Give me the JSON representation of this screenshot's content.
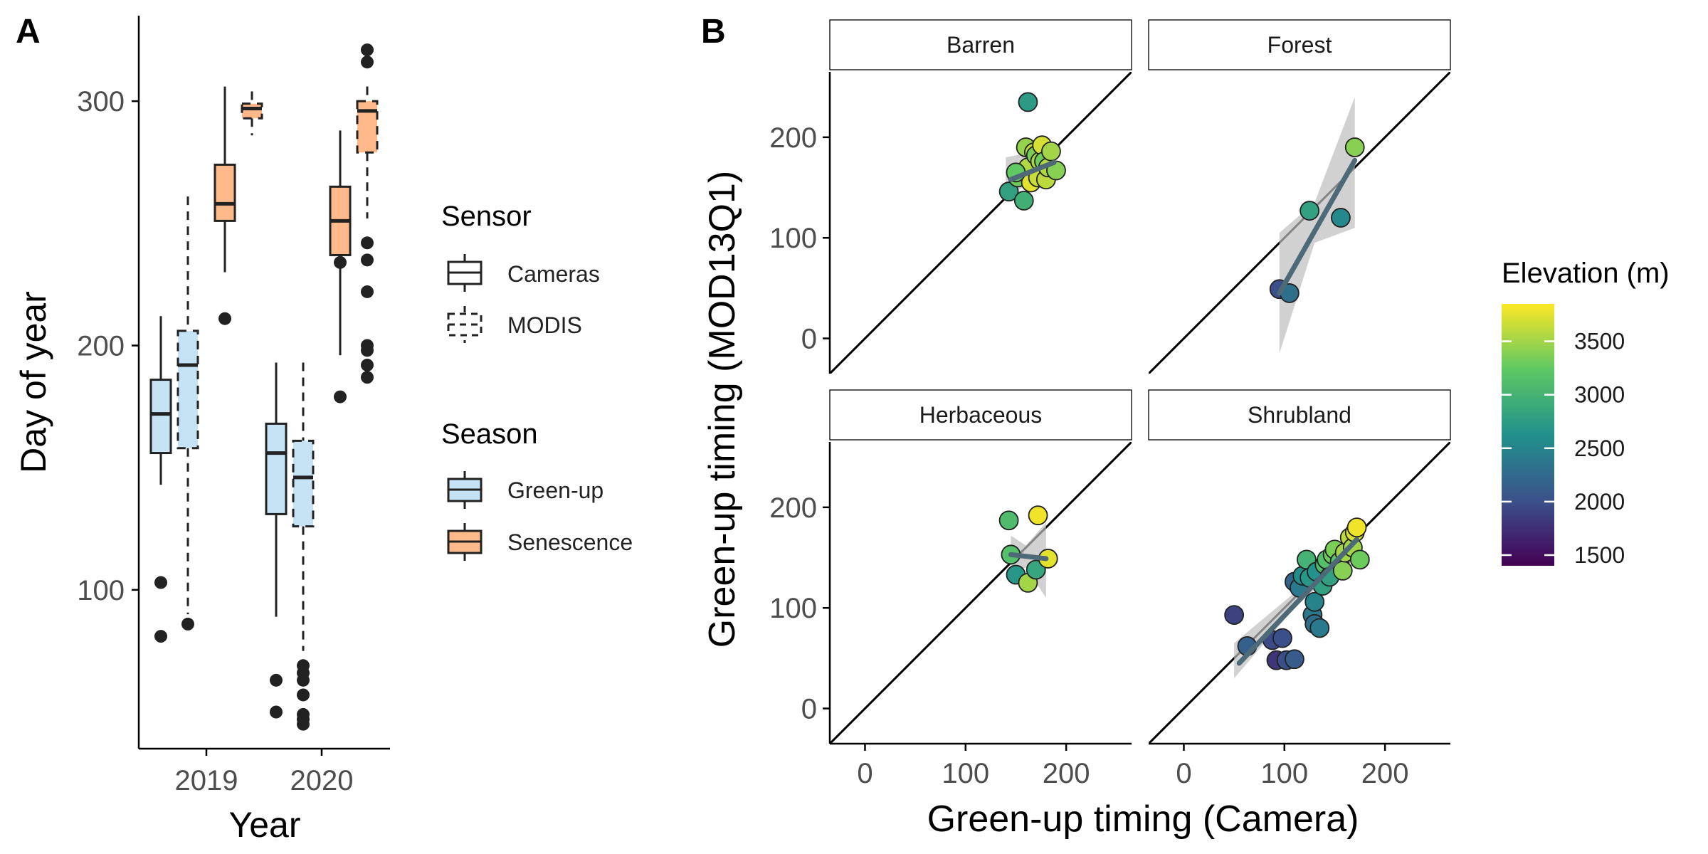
{
  "panel_labels": {
    "a": "A",
    "b": "B"
  },
  "colors": {
    "greenup_fill": "#C6E2F5",
    "senescence_fill": "#FFB98A",
    "box_stroke": "#222222",
    "outlier": "#222222",
    "fit_line": "#4E6A78",
    "ribbon": "#BDBDBD",
    "viridis": [
      "#440154",
      "#3B528B",
      "#21908C",
      "#5DC863",
      "#FDE725"
    ]
  },
  "chart_data": [
    {
      "type": "box",
      "panel": "A",
      "xlabel": "Year",
      "ylabel": "Day of year",
      "categories": [
        "2019",
        "2020"
      ],
      "yticks": [
        100,
        200,
        300
      ],
      "ylim": [
        35,
        335
      ],
      "groups": [
        {
          "year": "2019",
          "season": "Green-up",
          "sensor": "Cameras",
          "min": 143,
          "q1": 156,
          "median": 172,
          "q3": 186,
          "max": 212,
          "outliers": [
            81,
            103
          ]
        },
        {
          "year": "2019",
          "season": "Green-up",
          "sensor": "MODIS",
          "min": 90,
          "q1": 158,
          "median": 192,
          "q3": 206,
          "max": 261,
          "outliers": [
            86
          ]
        },
        {
          "year": "2019",
          "season": "Senescence",
          "sensor": "Cameras",
          "min": 230,
          "q1": 251,
          "median": 258,
          "q3": 274,
          "max": 306,
          "outliers": [
            211
          ]
        },
        {
          "year": "2019",
          "season": "Senescence",
          "sensor": "MODIS",
          "min": 286,
          "q1": 293,
          "median": 297,
          "q3": 299,
          "max": 304,
          "outliers": []
        },
        {
          "year": "2020",
          "season": "Green-up",
          "sensor": "Cameras",
          "min": 89,
          "q1": 131,
          "median": 156,
          "q3": 168,
          "max": 193,
          "outliers": [
            50,
            63
          ]
        },
        {
          "year": "2020",
          "season": "Green-up",
          "sensor": "MODIS",
          "min": 75,
          "q1": 126,
          "median": 146,
          "q3": 161,
          "max": 193,
          "outliers": [
            45,
            47,
            49,
            57,
            63,
            66,
            69
          ]
        },
        {
          "year": "2020",
          "season": "Senescence",
          "sensor": "Cameras",
          "min": 196,
          "q1": 237,
          "median": 251,
          "q3": 265,
          "max": 288,
          "outliers": [
            179,
            234
          ]
        },
        {
          "year": "2020",
          "season": "Senescence",
          "sensor": "MODIS",
          "min": 252,
          "q1": 279,
          "median": 296,
          "q3": 300,
          "max": 306,
          "outliers": [
            187,
            192,
            198,
            200,
            222,
            235,
            242,
            316,
            321
          ]
        }
      ],
      "legends": [
        {
          "title": "Sensor",
          "entries": [
            "Cameras",
            "MODIS"
          ]
        },
        {
          "title": "Season",
          "entries": [
            "Green-up",
            "Senescence"
          ]
        }
      ]
    },
    {
      "type": "scatter",
      "panel": "B",
      "xlabel": "Green-up timing (Camera)",
      "ylabel": "Green-up timing (MOD13Q1)",
      "xticks": [
        0,
        100,
        200
      ],
      "yticks": [
        0,
        100,
        200
      ],
      "xlim": [
        -35,
        265
      ],
      "ylim": [
        -35,
        265
      ],
      "colorbar": {
        "title": "Elevation (m)",
        "min": 1400,
        "max": 3850,
        "ticks": [
          1500,
          2000,
          2500,
          3000,
          3500
        ]
      },
      "facets": [
        {
          "name": "Barren",
          "points": [
            [
              143,
              146,
              2800
            ],
            [
              152,
              160,
              3300
            ],
            [
              158,
              137,
              2950
            ],
            [
              160,
              190,
              3450
            ],
            [
              162,
              170,
              3550
            ],
            [
              165,
              155,
              3750
            ],
            [
              168,
              185,
              3600
            ],
            [
              170,
              182,
              3350
            ],
            [
              172,
              160,
              3650
            ],
            [
              174,
              176,
              3500
            ],
            [
              176,
              192,
              3700
            ],
            [
              178,
              176,
              3300
            ],
            [
              180,
              158,
              3600
            ],
            [
              182,
              170,
              3550
            ],
            [
              185,
              186,
              3500
            ],
            [
              190,
              167,
              3400
            ],
            [
              162,
              235,
              2750
            ],
            [
              150,
              165,
              3250
            ]
          ],
          "fit": [
            [
              145,
              158
            ],
            [
              188,
              175
            ]
          ],
          "ribbon": [
            [
              140,
              140,
              180
            ],
            [
              165,
              155,
              185
            ],
            [
              190,
              160,
              195
            ]
          ]
        },
        {
          "name": "Forest",
          "points": [
            [
              95,
              49,
              2000
            ],
            [
              105,
              45,
              2300
            ],
            [
              125,
              127,
              2800
            ],
            [
              156,
              120,
              2550
            ],
            [
              170,
              190,
              3400
            ]
          ],
          "fit": [
            [
              95,
              45
            ],
            [
              170,
              177
            ]
          ],
          "ribbon": [
            [
              95,
              -15,
              105
            ],
            [
              130,
              95,
              135
            ],
            [
              170,
              110,
              240
            ]
          ]
        },
        {
          "name": "Herbaceous",
          "points": [
            [
              143,
              187,
              3100
            ],
            [
              145,
              153,
              3150
            ],
            [
              150,
              133,
              2700
            ],
            [
              162,
              125,
              3500
            ],
            [
              170,
              138,
              2850
            ],
            [
              172,
              192,
              3800
            ],
            [
              182,
              149,
              3750
            ]
          ],
          "fit": [
            [
              145,
              153
            ],
            [
              180,
              149
            ]
          ],
          "ribbon": [
            [
              145,
              135,
              172
            ],
            [
              160,
              140,
              162
            ],
            [
              180,
              110,
              185
            ]
          ]
        },
        {
          "name": "Shrubland",
          "points": [
            [
              50,
              93,
              1900
            ],
            [
              63,
              62,
              2150
            ],
            [
              88,
              68,
              1950
            ],
            [
              92,
              48,
              1800
            ],
            [
              98,
              70,
              2000
            ],
            [
              102,
              48,
              2000
            ],
            [
              110,
              49,
              2100
            ],
            [
              110,
              126,
              2200
            ],
            [
              115,
              120,
              2400
            ],
            [
              118,
              132,
              2600
            ],
            [
              122,
              148,
              3000
            ],
            [
              125,
              130,
              2700
            ],
            [
              128,
              93,
              2400
            ],
            [
              130,
              84,
              2300
            ],
            [
              130,
              106,
              2500
            ],
            [
              132,
              136,
              2650
            ],
            [
              138,
              122,
              2800
            ],
            [
              140,
              143,
              3100
            ],
            [
              142,
              148,
              3150
            ],
            [
              145,
              131,
              2800
            ],
            [
              148,
              153,
              3300
            ],
            [
              150,
              158,
              3350
            ],
            [
              155,
              146,
              3200
            ],
            [
              158,
              137,
              3400
            ],
            [
              160,
              155,
              3500
            ],
            [
              165,
              170,
              3600
            ],
            [
              168,
              160,
              3500
            ],
            [
              170,
              175,
              3700
            ],
            [
              172,
              180,
              3800
            ],
            [
              175,
              148,
              3300
            ],
            [
              135,
              80,
              2400
            ]
          ],
          "fit": [
            [
              55,
              45
            ],
            [
              172,
              168
            ]
          ],
          "ribbon": [
            [
              50,
              30,
              65
            ],
            [
              110,
              100,
              115
            ],
            [
              172,
              155,
              180
            ]
          ]
        }
      ]
    }
  ]
}
